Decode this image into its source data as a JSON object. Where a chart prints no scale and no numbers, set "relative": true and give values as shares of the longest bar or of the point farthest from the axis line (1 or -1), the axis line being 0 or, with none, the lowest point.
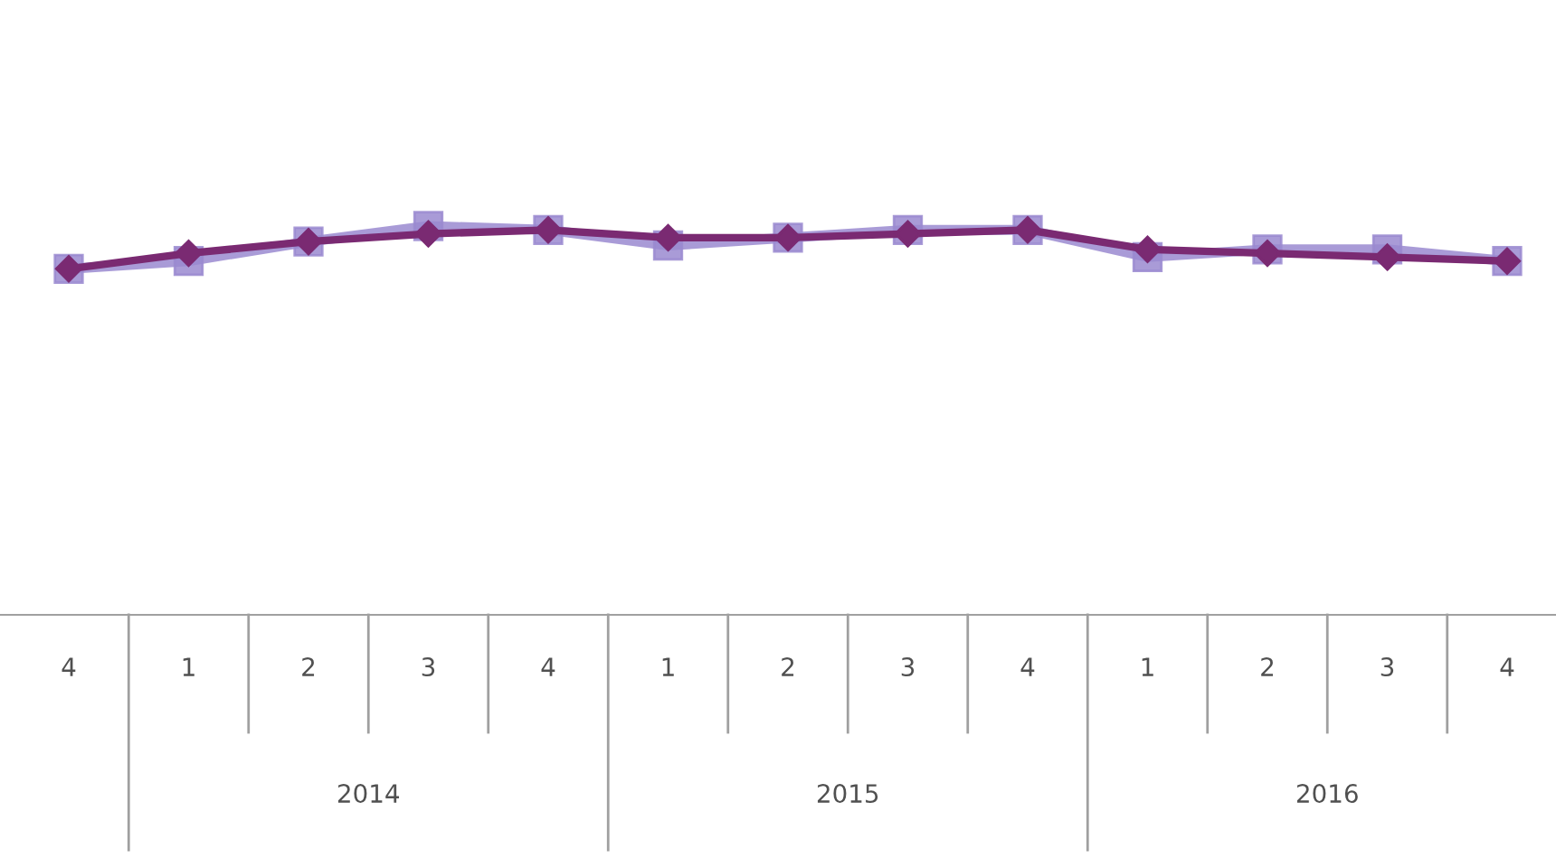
{
  "chart_data": {
    "type": "line",
    "relative": true,
    "categories": [
      "4",
      "1",
      "2",
      "3",
      "4",
      "1",
      "2",
      "3",
      "4",
      "1",
      "2",
      "3",
      "4"
    ],
    "series": [
      {
        "color": "#9a8ad0",
        "marker": "square",
        "values": [
          0.89,
          0.91,
          0.96,
          1.0,
          0.99,
          0.95,
          0.97,
          0.99,
          0.99,
          0.92,
          0.94,
          0.94,
          0.91
        ]
      },
      {
        "color": "#7a2a72",
        "marker": "diamond",
        "values": [
          0.89,
          0.93,
          0.96,
          0.98,
          0.99,
          0.97,
          0.97,
          0.98,
          0.99,
          0.94,
          0.93,
          0.92,
          0.91
        ]
      }
    ],
    "annotations": [
      "2014",
      "2015",
      "2016"
    ],
    "line_style": "solid",
    "legend": false
  }
}
